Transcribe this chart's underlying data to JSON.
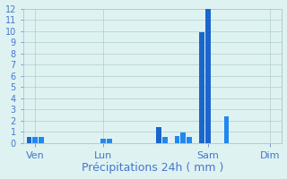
{
  "xlabel": "Précipitations 24h ( mm )",
  "background_color": "#dff2f2",
  "ylim": [
    0,
    12
  ],
  "yticks": [
    0,
    1,
    2,
    3,
    4,
    5,
    6,
    7,
    8,
    9,
    10,
    11,
    12
  ],
  "grid_color": "#b0cccc",
  "bars": [
    {
      "x": 1,
      "height": 0.5,
      "color": "#1a66cc"
    },
    {
      "x": 2,
      "height": 0.5,
      "color": "#2288ee"
    },
    {
      "x": 3,
      "height": 0.5,
      "color": "#2288ee"
    },
    {
      "x": 13,
      "height": 0.4,
      "color": "#2288ee"
    },
    {
      "x": 14,
      "height": 0.4,
      "color": "#2288ee"
    },
    {
      "x": 22,
      "height": 1.4,
      "color": "#1a66cc"
    },
    {
      "x": 23,
      "height": 0.5,
      "color": "#2288ee"
    },
    {
      "x": 25,
      "height": 0.6,
      "color": "#2288ee"
    },
    {
      "x": 26,
      "height": 0.9,
      "color": "#2288ee"
    },
    {
      "x": 27,
      "height": 0.5,
      "color": "#2288ee"
    },
    {
      "x": 29,
      "height": 9.9,
      "color": "#1a66cc"
    },
    {
      "x": 30,
      "height": 12.0,
      "color": "#1a66cc"
    },
    {
      "x": 33,
      "height": 2.4,
      "color": "#2288ee"
    }
  ],
  "n_slots": 42,
  "xtick_positions": [
    2,
    13,
    30,
    40
  ],
  "xtick_labels": [
    "Ven",
    "Lun",
    "Sam",
    "Dim"
  ],
  "tick_color": "#4477cc",
  "label_color": "#4477cc",
  "ytick_fontsize": 7,
  "xtick_fontsize": 8,
  "xlabel_fontsize": 9,
  "bar_width": 0.85
}
